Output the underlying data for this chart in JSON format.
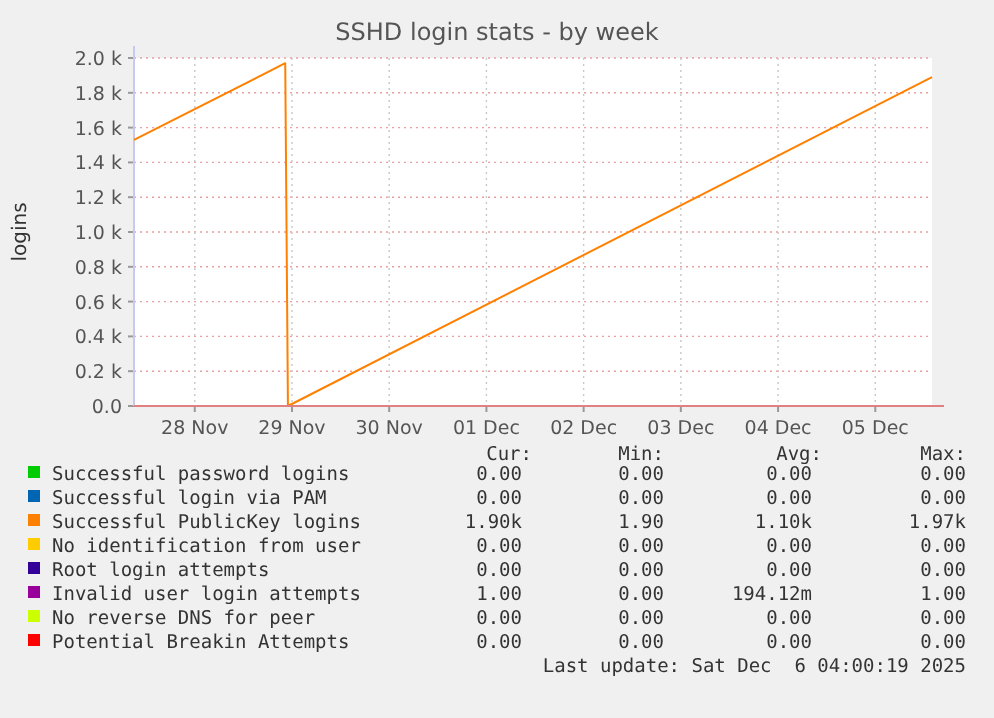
{
  "chart_data": {
    "type": "line",
    "title": "SSHD login stats - by week",
    "ylabel": "logins",
    "xlim": [
      "2025-11-27T21:00",
      "2025-12-06T02:00"
    ],
    "xticks": [
      {
        "value": "2025-11-28T12:00",
        "label": "28 Nov"
      },
      {
        "value": "2025-11-29T12:00",
        "label": "29 Nov"
      },
      {
        "value": "2025-11-30T12:00",
        "label": "30 Nov"
      },
      {
        "value": "2025-12-01T12:00",
        "label": "01 Dec"
      },
      {
        "value": "2025-12-02T12:00",
        "label": "02 Dec"
      },
      {
        "value": "2025-12-03T12:00",
        "label": "03 Dec"
      },
      {
        "value": "2025-12-04T12:00",
        "label": "04 Dec"
      },
      {
        "value": "2025-12-05T12:00",
        "label": "05 Dec"
      }
    ],
    "ylim": [
      0,
      2000
    ],
    "yticks": [
      {
        "value": 0,
        "label": "0.0"
      },
      {
        "value": 200,
        "label": "0.2 k"
      },
      {
        "value": 400,
        "label": "0.4 k"
      },
      {
        "value": 600,
        "label": "0.6 k"
      },
      {
        "value": 800,
        "label": "0.8 k"
      },
      {
        "value": 1000,
        "label": "1.0 k"
      },
      {
        "value": 1200,
        "label": "1.2 k"
      },
      {
        "value": 1400,
        "label": "1.4 k"
      },
      {
        "value": 1600,
        "label": "1.6 k"
      },
      {
        "value": 1800,
        "label": "1.8 k"
      },
      {
        "value": 2000,
        "label": "2.0 k"
      }
    ],
    "grid": true,
    "legend": "bottom",
    "marker": "none",
    "line_style": "solid",
    "series": [
      {
        "name": "Successful password logins",
        "color": "#00cc00"
      },
      {
        "name": "Successful login via PAM",
        "color": "#0066b3"
      },
      {
        "name": "Successful PublicKey logins",
        "color": "#ff8000",
        "x": [
          "2025-11-27T21:00",
          "2025-11-29T10:20",
          "2025-11-29T11:00",
          "2025-12-06T02:00"
        ],
        "values": [
          1530,
          1970,
          0,
          1890
        ]
      },
      {
        "name": "No identification from user",
        "color": "#ffcc00"
      },
      {
        "name": "Root login attempts",
        "color": "#330099"
      },
      {
        "name": "Invalid user login attempts",
        "color": "#990099"
      },
      {
        "name": "No reverse DNS for peer",
        "color": "#ccff00"
      },
      {
        "name": "Potential Breakin Attempts",
        "color": "#ff0000"
      }
    ],
    "annotations": [
      "Cur:",
      "Min:",
      "Avg:",
      "Max:",
      "0.00",
      "0.00",
      "0.00",
      "0.00",
      "0.00",
      "0.00",
      "0.00",
      "0.00",
      "1.90k",
      "1.90",
      "1.10k",
      "1.97k",
      "0.00",
      "0.00",
      "0.00",
      "0.00",
      "0.00",
      "0.00",
      "0.00",
      "0.00",
      "1.00",
      "0.00",
      "194.12m",
      "1.00",
      "0.00",
      "0.00",
      "0.00",
      "0.00",
      "0.00",
      "0.00",
      "0.00",
      "0.00",
      "Last update: Sat Dec  6 04:00:19 2025"
    ]
  }
}
